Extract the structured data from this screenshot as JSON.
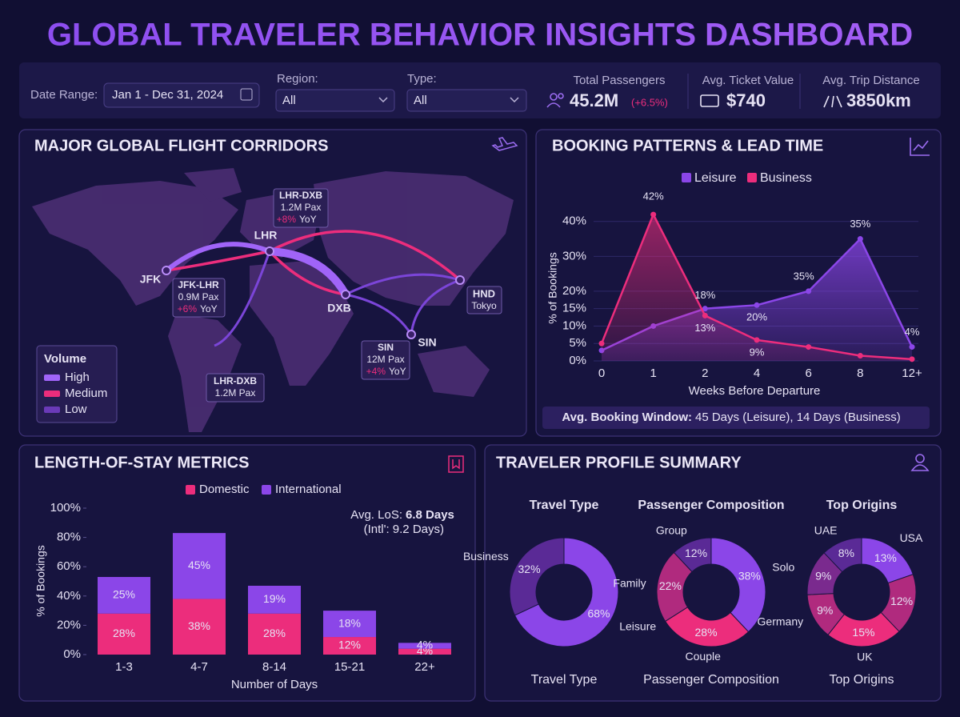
{
  "header": {
    "title": "GLOBAL TRAVELER BEHAVIOR INSIGHTS DASHBOARD"
  },
  "filters": {
    "date_label": "Date Range:",
    "date_value": "Jan 1 - Dec 31, 2024",
    "region_label": "Region:",
    "region_value": "All",
    "type_label": "Type:",
    "type_value": "All"
  },
  "kpis": [
    {
      "label": "Total Passengers",
      "value": "45.2M",
      "change": "(+6.5%)"
    },
    {
      "label": "Avg. Ticket Value",
      "value": "$740"
    },
    {
      "label": "Avg. Trip Distance",
      "value": "3850km"
    }
  ],
  "map": {
    "title": "MAJOR GLOBAL FLIGHT CORRIDORS",
    "cities": [
      "JFK",
      "LHR",
      "DXB",
      "SIN"
    ],
    "tokyo": {
      "code": "HND",
      "name": "Tokyo"
    },
    "callouts": [
      {
        "title": "LHR-DXB",
        "pax": "1.2M Pax",
        "change": "+8%",
        "yoy": "YoY"
      },
      {
        "title": "JFK-LHR",
        "pax": "0.9M Pax",
        "change": "+6%",
        "yoy": "YoY"
      },
      {
        "title": "SIN",
        "pax": "12M Pax",
        "change": "+4%",
        "yoy": "YoY"
      },
      {
        "title": "LHR-DXB",
        "pax": "1.2M Pax"
      }
    ],
    "legend": {
      "title": "Volume",
      "items": [
        "High",
        "Medium",
        "Low"
      ]
    }
  },
  "chart_data": [
    {
      "type": "area",
      "title": "BOOKING PATTERNS & LEAD TIME",
      "categories": [
        "0",
        "1",
        "2",
        "4",
        "6",
        "8",
        "12+"
      ],
      "series": [
        {
          "name": "Leisure",
          "color": "#8b46e8",
          "values": [
            3,
            10,
            15,
            16,
            20,
            35,
            4
          ]
        },
        {
          "name": "Business",
          "color": "#ec2d7c",
          "values": [
            5,
            42,
            13,
            6,
            4,
            1.5,
            0.5
          ]
        }
      ],
      "ylim": [
        0,
        45
      ],
      "yticks": [
        {
          "value": 0,
          "label": "0%"
        },
        {
          "value": 5,
          "label": "5%"
        },
        {
          "value": 10,
          "label": "10%"
        },
        {
          "value": 15,
          "label": "15%"
        },
        {
          "value": 20,
          "label": "20%"
        },
        {
          "value": 30,
          "label": "30%"
        },
        {
          "value": 40,
          "label": "40%"
        }
      ],
      "grid": true,
      "xlabel": "Weeks Before Departure",
      "ylabel": "% of Bookings",
      "annotations": [
        "42%",
        "18%",
        "13%",
        "20%",
        "9%",
        "35%",
        "35%",
        "4%"
      ],
      "footer": {
        "label": "Avg. Booking Window:",
        "text": "45 Days (Leisure), 14 Days (Business)"
      }
    },
    {
      "type": "stacked_bar",
      "title": "LENGTH-OF-STAY METRICS",
      "categories": [
        "1-3",
        "4-7",
        "8-14",
        "15-21",
        "22+"
      ],
      "series": [
        {
          "name": "Domestic",
          "color": "#ec2d7c",
          "values": [
            28,
            38,
            28,
            12,
            4
          ],
          "value_labels": [
            "28%",
            "38%",
            "28%",
            "12%",
            "4%"
          ]
        },
        {
          "name": "International",
          "color": "#8b46e8",
          "values": [
            25,
            45,
            19,
            18,
            4
          ],
          "value_labels": [
            "25%",
            "45%",
            "19%",
            "18%",
            "4%"
          ]
        }
      ],
      "ylim": [
        0,
        100
      ],
      "yticks": [
        {
          "value": 0,
          "label": "0%"
        },
        {
          "value": 20,
          "label": "20%"
        },
        {
          "value": 40,
          "label": "40%"
        },
        {
          "value": 60,
          "label": "60%"
        },
        {
          "value": 80,
          "label": "80%"
        },
        {
          "value": 100,
          "label": "100%"
        }
      ],
      "xlabel": "Number of Days",
      "ylabel": "% of Bookings",
      "note": {
        "label": "Avg. LoS:",
        "value": "6.8 Days",
        "sub": "(Intl': 9.2 Days)"
      }
    },
    {
      "type": "donut",
      "title": "Travel Type",
      "categories": [
        "Leisure",
        "Business"
      ],
      "values": [
        68,
        32
      ],
      "value_labels": [
        "68%",
        "32%"
      ],
      "colors": [
        "#8b46e8",
        "#5a2a96"
      ]
    },
    {
      "type": "donut",
      "title": "Passenger Composition",
      "categories": [
        "Solo",
        "Couple",
        "Family",
        "Group"
      ],
      "values": [
        38,
        28,
        22,
        12
      ],
      "value_labels": [
        "38%",
        "28%",
        "22%",
        "12%"
      ],
      "colors": [
        "#8b46e8",
        "#ec2d7c",
        "#b02a7e",
        "#5a2a96"
      ]
    },
    {
      "type": "donut",
      "title": "Top Origins",
      "categories": [
        "USA",
        null,
        "UK",
        "Germany",
        null,
        "UAE"
      ],
      "values": [
        13,
        12,
        15,
        9,
        9,
        8
      ],
      "value_labels": [
        "13%",
        "12%",
        "15%",
        "9%",
        "9%",
        "8%"
      ],
      "colors": [
        "#8b46e8",
        "#b02a7e",
        "#ec2d7c",
        "#b02a7e",
        "#7a2a8e",
        "#5a2a96"
      ]
    }
  ],
  "profile": {
    "title": "TRAVELER PROFILE SUMMARY"
  }
}
